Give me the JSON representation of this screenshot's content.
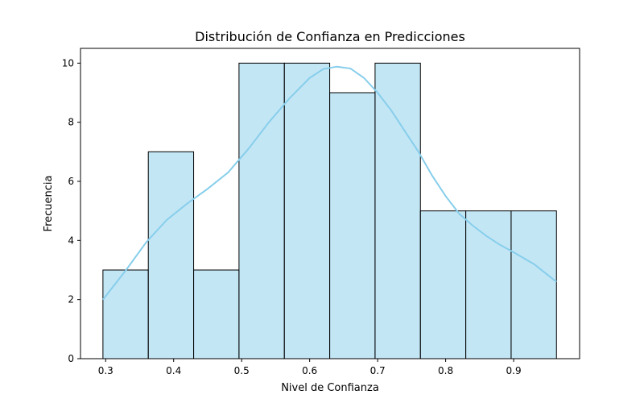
{
  "chart_data": {
    "type": "bar",
    "title": "Distribución de Confianza en Predicciones",
    "xlabel": "Nivel de Confianza",
    "ylabel": "Frecuencia",
    "xlim": [
      0.263,
      0.997
    ],
    "ylim": [
      0,
      10.5
    ],
    "x_ticks": [
      "0.3",
      "0.4",
      "0.5",
      "0.6",
      "0.7",
      "0.8",
      "0.9"
    ],
    "y_ticks": [
      "0",
      "2",
      "4",
      "6",
      "8",
      "10"
    ],
    "bin_edges": [
      0.296,
      0.3627,
      0.4294,
      0.4961,
      0.5628,
      0.6295,
      0.6962,
      0.7629,
      0.8296,
      0.8963,
      0.963
    ],
    "values": [
      3,
      7,
      3,
      10,
      10,
      9,
      10,
      5,
      5,
      5
    ],
    "kde": {
      "x": [
        0.296,
        0.33,
        0.36,
        0.39,
        0.42,
        0.45,
        0.48,
        0.51,
        0.54,
        0.57,
        0.6,
        0.62,
        0.64,
        0.66,
        0.68,
        0.7,
        0.72,
        0.74,
        0.76,
        0.78,
        0.8,
        0.82,
        0.84,
        0.86,
        0.88,
        0.9,
        0.93,
        0.963
      ],
      "y": [
        2.0,
        3.0,
        3.95,
        4.7,
        5.25,
        5.75,
        6.3,
        7.1,
        8.0,
        8.8,
        9.5,
        9.8,
        9.88,
        9.82,
        9.5,
        9.0,
        8.4,
        7.7,
        7.0,
        6.2,
        5.5,
        4.9,
        4.5,
        4.15,
        3.85,
        3.6,
        3.2,
        2.6
      ]
    },
    "bar_color": "#87ceeb",
    "bar_fill_opacity": 0.5,
    "kde_color": "#87ceeb",
    "grid": false,
    "legend": "none"
  }
}
